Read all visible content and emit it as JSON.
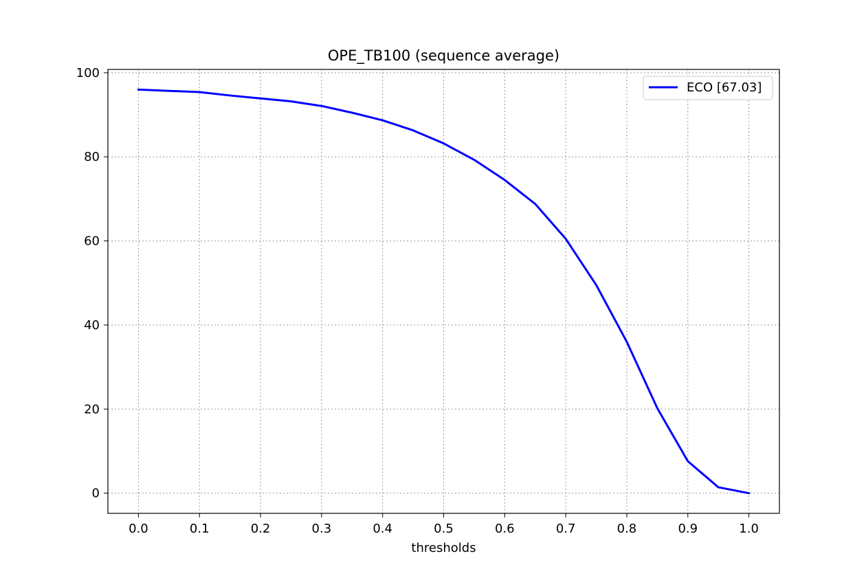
{
  "chart_data": {
    "type": "line",
    "title": "OPE_TB100 (sequence average)",
    "xlabel": "thresholds",
    "ylabel": "",
    "xlim": [
      -0.05,
      1.05
    ],
    "ylim": [
      -4.8,
      100.8
    ],
    "xticks": [
      "0.0",
      "0.1",
      "0.2",
      "0.3",
      "0.4",
      "0.5",
      "0.6",
      "0.7",
      "0.8",
      "0.9",
      "1.0"
    ],
    "yticks": [
      "0",
      "20",
      "40",
      "60",
      "80",
      "100"
    ],
    "grid": true,
    "legend_position": "top-right",
    "series": [
      {
        "name": "ECO [67.03]",
        "color": "#0000ff",
        "x": [
          0.0,
          0.05,
          0.1,
          0.15,
          0.2,
          0.25,
          0.3,
          0.35,
          0.4,
          0.45,
          0.5,
          0.55,
          0.6,
          0.65,
          0.7,
          0.75,
          0.8,
          0.85,
          0.9,
          0.95,
          1.0
        ],
        "y": [
          96.0,
          95.7,
          95.4,
          94.6,
          93.9,
          93.2,
          92.1,
          90.5,
          88.7,
          86.3,
          83.2,
          79.3,
          74.5,
          68.8,
          60.5,
          49.5,
          36.0,
          20.2,
          7.6,
          1.4,
          0.0
        ]
      }
    ]
  }
}
